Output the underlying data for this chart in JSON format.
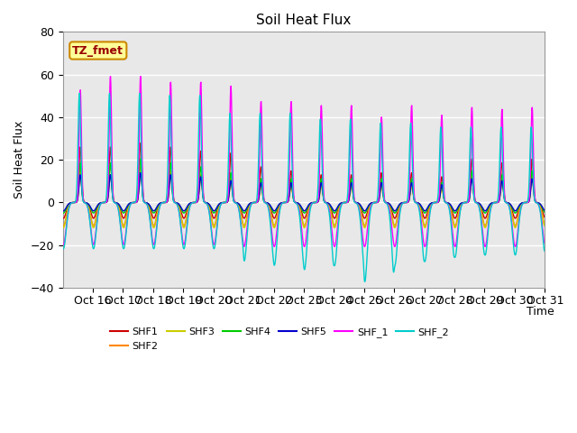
{
  "title": "Soil Heat Flux",
  "ylabel": "Soil Heat Flux",
  "xlabel": "Time",
  "ylim": [
    -40,
    80
  ],
  "yticks": [
    -40,
    -20,
    0,
    20,
    40,
    60,
    80
  ],
  "xtick_labels": [
    "Oct 16",
    "Oct 17",
    "Oct 18",
    "Oct 19",
    "Oct 20",
    "Oct 21",
    "Oct 22",
    "Oct 23",
    "Oct 24",
    "Oct 25",
    "Oct 26",
    "Oct 27",
    "Oct 28",
    "Oct 29",
    "Oct 30",
    "Oct 31"
  ],
  "series_colors": {
    "SHF1": "#cc0000",
    "SHF2": "#ff8800",
    "SHF3": "#cccc00",
    "SHF4": "#00cc00",
    "SHF5": "#0000cc",
    "SHF_1": "#ff00ff",
    "SHF_2": "#00cccc"
  },
  "annotation_text": "TZ_fmet",
  "annotation_bg": "#ffff99",
  "annotation_border": "#cc8800",
  "bg_color": "#e8e8e8",
  "grid_color": "#ffffff",
  "n_days": 16,
  "n_pts_per_day": 96
}
